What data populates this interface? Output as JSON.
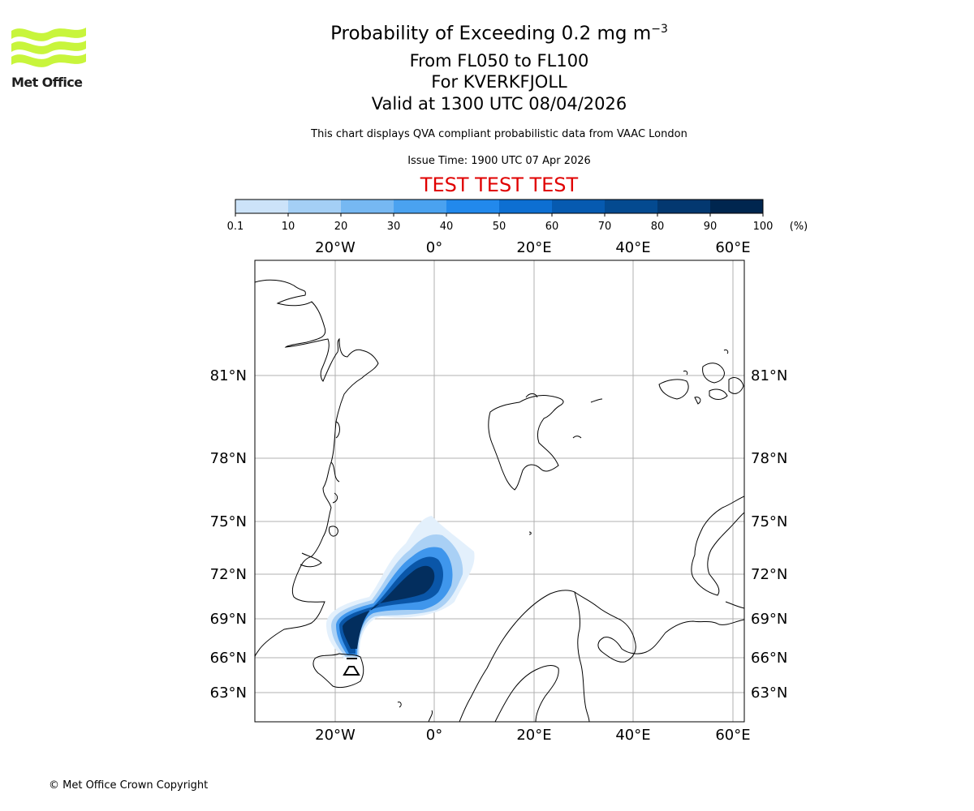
{
  "brand": {
    "name": "Met Office",
    "logo_color": "#c8f53c"
  },
  "title": {
    "main": "Probability of Exceeding 0.2 mg m",
    "superscript": "−3",
    "levels": "From FL050 to FL100",
    "volcano": "For KVERKFJOLL",
    "valid": "Valid at 1300 UTC 08/04/2026"
  },
  "subtitle": "This chart displays QVA compliant probabilistic data from VAAC London",
  "issue_time": "Issue Time: 1900 UTC 07 Apr 2026",
  "test_banner": "TEST TEST TEST",
  "colorbar": {
    "ticks": [
      "0.1",
      "10",
      "20",
      "30",
      "40",
      "50",
      "60",
      "70",
      "80",
      "90",
      "100"
    ],
    "unit": "(%)",
    "colors": [
      "#eef6ff",
      "#cce3f9",
      "#a4cff5",
      "#76b8f2",
      "#4aa2f0",
      "#2289ec",
      "#0d6fd2",
      "#065ab0",
      "#044a90",
      "#033870",
      "#00264f"
    ]
  },
  "map": {
    "lon_labels": [
      "20°W",
      "0°",
      "20°E",
      "40°E",
      "60°E"
    ],
    "lon_values": [
      -20,
      0,
      20,
      40,
      60
    ],
    "lat_labels": [
      "81°N",
      "78°N",
      "75°N",
      "72°N",
      "69°N",
      "66°N",
      "63°N"
    ],
    "lat_values": [
      81,
      78,
      75,
      72,
      69,
      66,
      63
    ],
    "volcano_marker_lon": -16.7,
    "volcano_marker_lat": 64.7,
    "gridline_color": "#b0b0b0"
  },
  "copyright": "© Met Office Crown Copyright"
}
